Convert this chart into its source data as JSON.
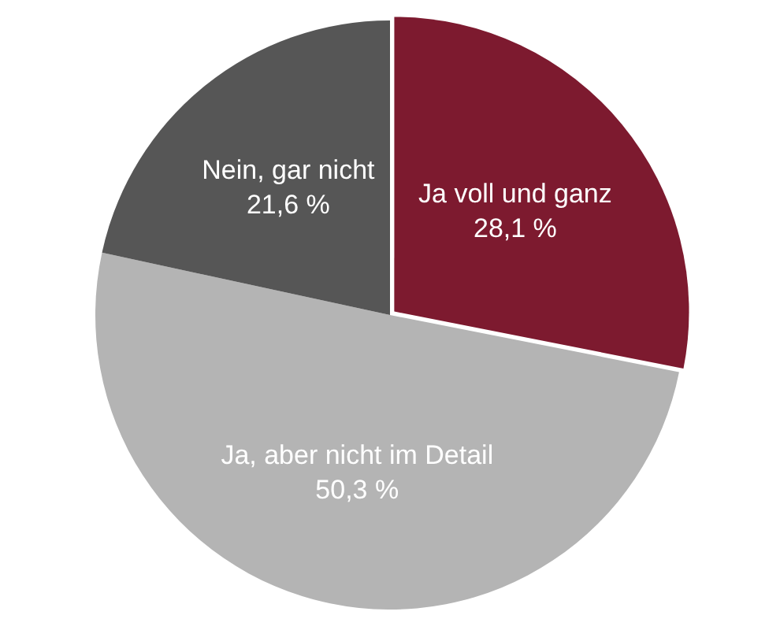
{
  "chart_data": {
    "type": "pie",
    "categories": [
      "Ja voll und ganz",
      "Ja, aber nicht im Detail",
      "Nein, gar nicht"
    ],
    "values": [
      28.1,
      50.3,
      21.6
    ],
    "colors": [
      "#7d1a2f",
      "#b4b4b4",
      "#565656"
    ],
    "value_labels": [
      "28,1 %",
      "50,3 %",
      "21,6 %"
    ],
    "legend": false
  }
}
